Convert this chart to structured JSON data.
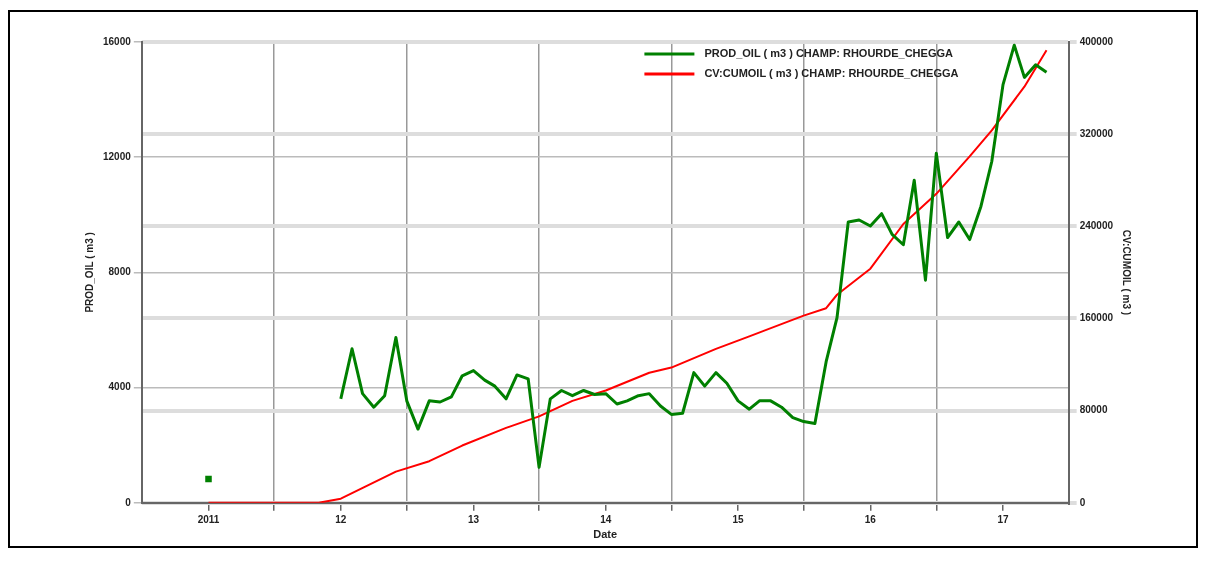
{
  "chart_data": {
    "type": "line",
    "xlabel": "Date",
    "ylabel": "PROD_OIL ( m3 )",
    "y2label": "CV:CUMOIL ( m3 )",
    "xlim": [
      "2010-07",
      "2017-07"
    ],
    "xticks": [
      {
        "value": "2011-01",
        "label": "2011"
      },
      {
        "value": "2011-07",
        "label": null
      },
      {
        "value": "2012-01",
        "label": "12"
      },
      {
        "value": "2012-07",
        "label": null
      },
      {
        "value": "2013-01",
        "label": "13"
      },
      {
        "value": "2013-07",
        "label": null
      },
      {
        "value": "2014-01",
        "label": "14"
      },
      {
        "value": "2014-07",
        "label": null
      },
      {
        "value": "2015-01",
        "label": "15"
      },
      {
        "value": "2015-07",
        "label": null
      },
      {
        "value": "2016-01",
        "label": "16"
      },
      {
        "value": "2016-07",
        "label": null
      },
      {
        "value": "2017-01",
        "label": "17"
      }
    ],
    "ylim": [
      0,
      16000
    ],
    "yticks": [
      0,
      4000,
      8000,
      12000,
      16000
    ],
    "y2lim": [
      0,
      400000
    ],
    "y2ticks": [
      0,
      80000,
      160000,
      240000,
      320000,
      400000
    ],
    "grid": true,
    "legend": "top right",
    "series": [
      {
        "name": "PROD_OIL ( m3 ) CHAMP: RHOURDE_CHEGGA",
        "color": "#008000",
        "x": [
          "2011-01",
          "2011-06",
          "2012-01",
          "2012-02",
          "2012-03",
          "2012-04",
          "2012-05",
          "2012-06",
          "2012-07",
          "2012-08",
          "2012-09",
          "2012-10",
          "2012-11",
          "2012-12",
          "2013-01",
          "2013-02",
          "2013-03",
          "2013-04",
          "2013-05",
          "2013-06",
          "2013-07",
          "2013-08",
          "2013-09",
          "2013-10",
          "2013-11",
          "2013-12",
          "2014-01",
          "2014-02",
          "2014-03",
          "2014-04",
          "2014-05",
          "2014-06",
          "2014-07",
          "2014-08",
          "2014-09",
          "2014-10",
          "2014-11",
          "2014-12",
          "2015-01",
          "2015-02",
          "2015-03",
          "2015-04",
          "2015-05",
          "2015-06",
          "2015-07",
          "2015-08",
          "2015-09",
          "2015-10",
          "2015-11",
          "2015-12",
          "2016-01",
          "2016-02",
          "2016-03",
          "2016-04",
          "2016-05",
          "2016-06",
          "2016-07",
          "2016-08",
          "2016-09",
          "2016-10",
          "2016-11",
          "2016-12",
          "2017-01",
          "2017-02",
          "2017-03",
          "2017-04",
          "2017-05"
        ],
        "values": [
          830,
          null,
          3610,
          5350,
          3790,
          3320,
          3720,
          5740,
          3540,
          2560,
          3540,
          3500,
          3680,
          4410,
          4590,
          4260,
          4050,
          3610,
          4440,
          4300,
          1230,
          3610,
          3900,
          3720,
          3900,
          3760,
          3790,
          3430,
          3540,
          3720,
          3790,
          3360,
          3070,
          3110,
          4520,
          4050,
          4520,
          4150,
          3540,
          3250,
          3540,
          3540,
          3320,
          2960,
          2820,
          2750,
          4900,
          6430,
          9750,
          9820,
          9610,
          10040,
          9320,
          8960,
          11200,
          7730,
          12140,
          9210,
          9750,
          9140,
          10290,
          11850,
          14520,
          15890,
          14770,
          15210,
          14950
        ]
      },
      {
        "name": "CV:CUMOIL ( m3 ) CHAMP: RHOURDE_CHEGGA",
        "color": "#ff0000",
        "axis": "y2",
        "x": [
          "2011-01",
          "2011-11",
          "2012-01",
          "2012-06",
          "2012-09",
          "2012-12",
          "2013-04",
          "2013-07",
          "2013-10",
          "2014-01",
          "2014-05",
          "2014-07",
          "2014-11",
          "2015-02",
          "2015-07",
          "2015-09",
          "2015-10",
          "2016-01",
          "2016-04",
          "2016-07",
          "2016-10",
          "2016-12",
          "2017-03",
          "2017-05"
        ],
        "values": [
          0,
          0,
          3600,
          27100,
          36100,
          49700,
          65000,
          75000,
          88500,
          97500,
          112900,
          117400,
          133600,
          144500,
          162500,
          168900,
          180600,
          203200,
          242000,
          268200,
          300700,
          323300,
          361200,
          392800
        ]
      }
    ]
  }
}
